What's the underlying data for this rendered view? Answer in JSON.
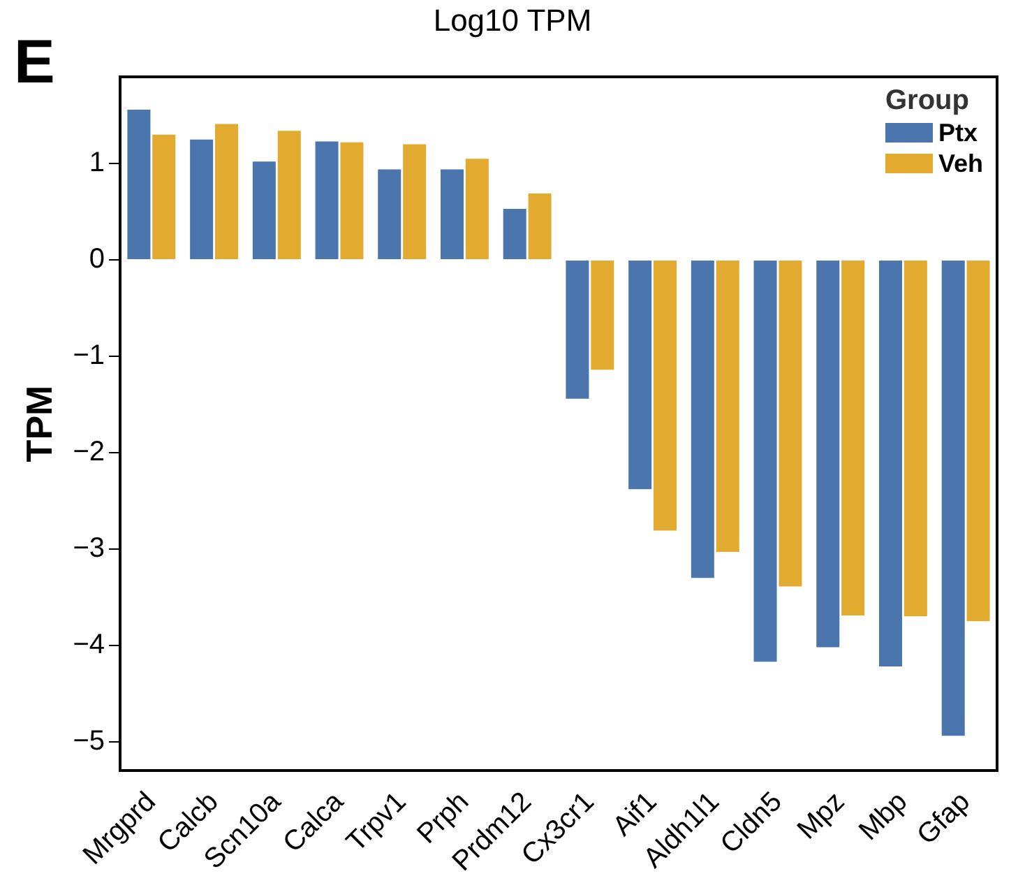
{
  "chart_data": {
    "type": "bar",
    "title": "Log10 TPM",
    "ylabel": "TPM",
    "legend_title": "Group",
    "annotations": [
      "E"
    ],
    "categories": [
      "Mrgprd",
      "Calcb",
      "Scn10a",
      "Calca",
      "Trpv1",
      "Prph",
      "Prdm12",
      "Cx3cr1",
      "Aif1",
      "Aldh1l1",
      "Cldn5",
      "Mpz",
      "Mbp",
      "Gfap"
    ],
    "series": [
      {
        "name": "Ptx",
        "color": "#4a76ad",
        "values": [
          1.56,
          1.25,
          1.02,
          1.23,
          0.94,
          0.94,
          0.53,
          -1.44,
          -2.38,
          -3.3,
          -4.17,
          -4.02,
          -4.22,
          -4.94
        ]
      },
      {
        "name": "Veh",
        "color": "#e2ab30",
        "values": [
          1.3,
          1.41,
          1.34,
          1.22,
          1.2,
          1.05,
          0.69,
          -1.14,
          -2.81,
          -3.03,
          -3.39,
          -3.69,
          -3.7,
          -3.75
        ]
      }
    ],
    "ylim": [
      -5.3,
      1.9
    ],
    "yticks": [
      -5,
      -4,
      -3,
      -2,
      -1,
      0,
      1
    ],
    "grid": false,
    "legend": "top right"
  }
}
